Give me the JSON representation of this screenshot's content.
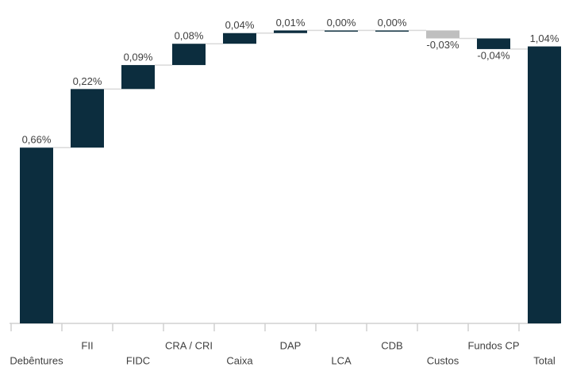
{
  "chart_data": {
    "type": "waterfall",
    "categories": [
      "Debêntures",
      "FII",
      "FIDC",
      "CRA / CRI",
      "Caixa",
      "DAP",
      "LCA",
      "CDB",
      "Custos",
      "Fundos CP",
      "Total"
    ],
    "values": [
      0.66,
      0.22,
      0.09,
      0.08,
      0.04,
      0.01,
      0.0,
      0.0,
      -0.03,
      -0.04,
      1.04
    ],
    "value_labels": [
      "0,66%",
      "0,22%",
      "0,09%",
      "0,08%",
      "0,04%",
      "0,01%",
      "0,00%",
      "0,00%",
      "-0,03%",
      "-0,04%",
      "1,04%"
    ],
    "measure": [
      "relative",
      "relative",
      "relative",
      "relative",
      "relative",
      "relative",
      "relative",
      "relative",
      "relative",
      "relative",
      "total"
    ],
    "colors": [
      "#0c2d3e",
      "#0c2d3e",
      "#0c2d3e",
      "#0c2d3e",
      "#0c2d3e",
      "#0c2d3e",
      "#0c2d3e",
      "#0c2d3e",
      "#bfbfbf",
      "#0c2d3e",
      "#0c2d3e"
    ]
  }
}
